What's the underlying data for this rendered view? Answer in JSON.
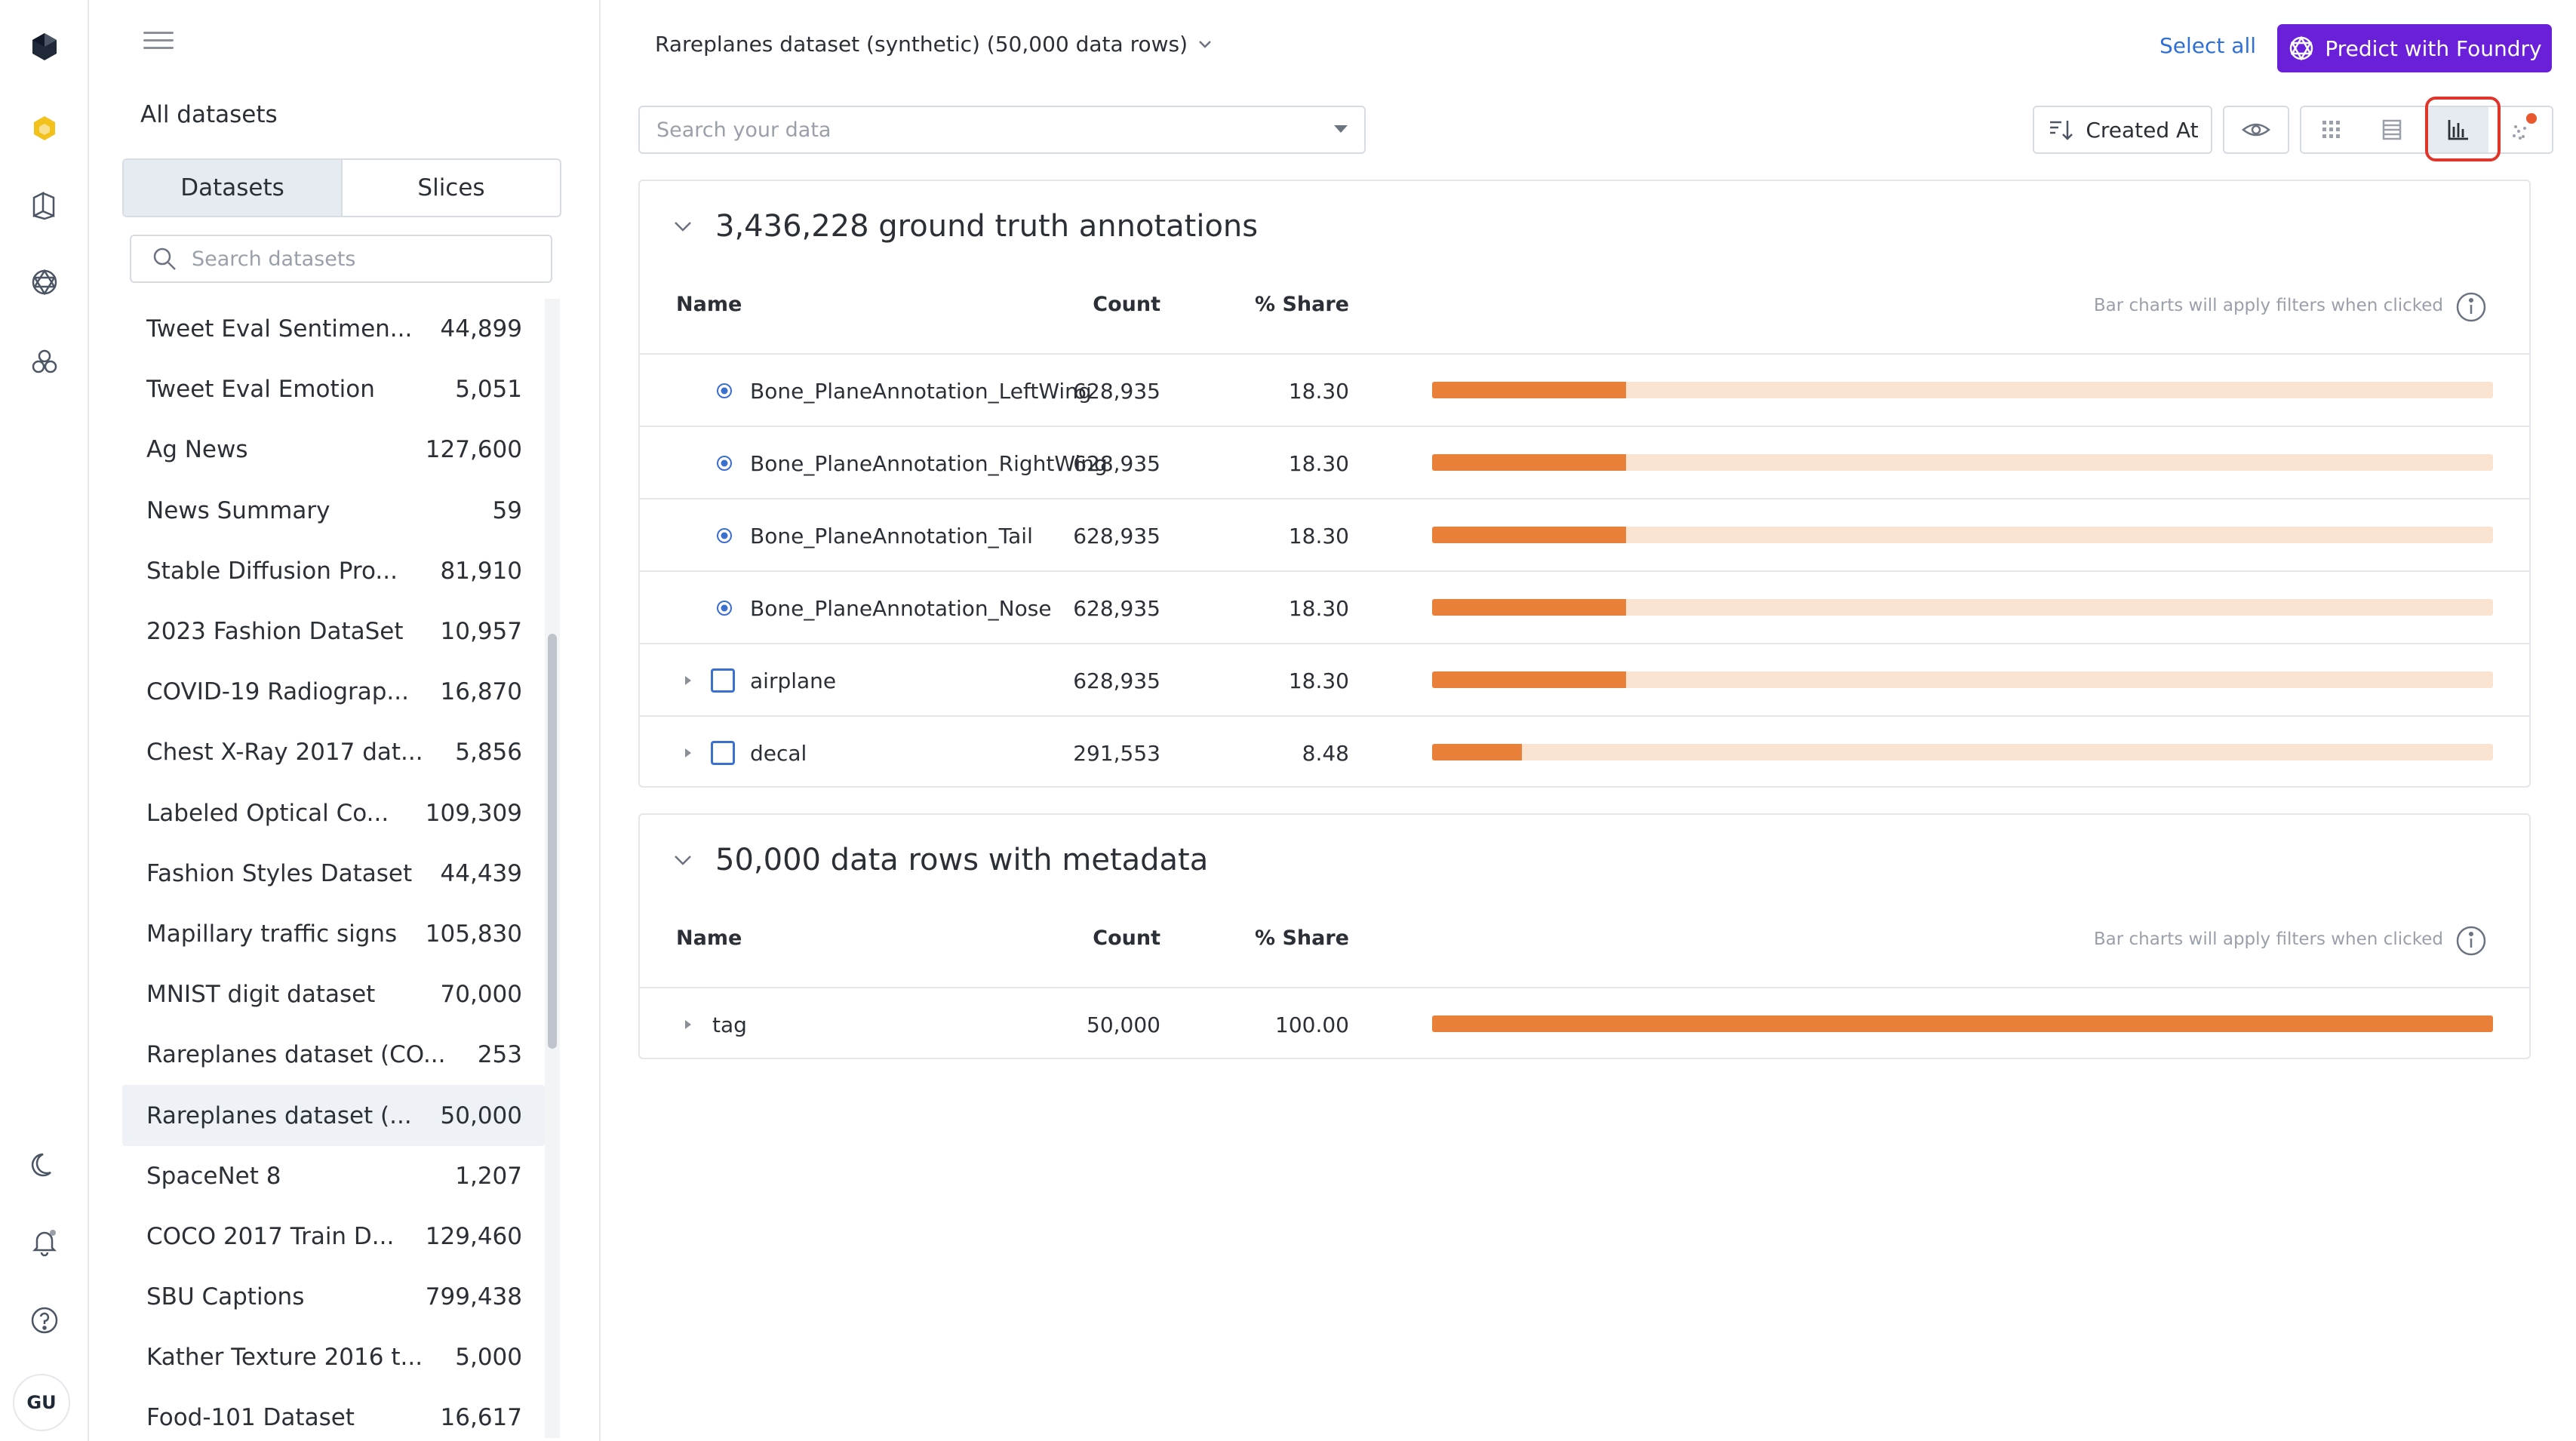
{
  "rail": {
    "avatar_initials": "GU"
  },
  "sidebar": {
    "heading": "All datasets",
    "tabs": [
      "Datasets",
      "Slices"
    ],
    "search_placeholder": "Search datasets",
    "datasets": [
      {
        "name": "Tweet Eval Sentimen...",
        "count": "44,899"
      },
      {
        "name": "Tweet Eval Emotion",
        "count": "5,051"
      },
      {
        "name": "Ag News",
        "count": "127,600"
      },
      {
        "name": "News Summary",
        "count": "59"
      },
      {
        "name": "Stable Diffusion Pro...",
        "count": "81,910"
      },
      {
        "name": "2023 Fashion DataSet",
        "count": "10,957"
      },
      {
        "name": "COVID-19 Radiograp...",
        "count": "16,870"
      },
      {
        "name": "Chest X-Ray 2017 dat...",
        "count": "5,856"
      },
      {
        "name": "Labeled Optical Co...",
        "count": "109,309"
      },
      {
        "name": "Fashion Styles Dataset",
        "count": "44,439"
      },
      {
        "name": "Mapillary traffic signs",
        "count": "105,830"
      },
      {
        "name": "MNIST digit dataset",
        "count": "70,000"
      },
      {
        "name": "Rareplanes dataset (CO...",
        "count": "253"
      },
      {
        "name": "Rareplanes dataset (...",
        "count": "50,000"
      },
      {
        "name": "SpaceNet 8",
        "count": "1,207"
      },
      {
        "name": "COCO 2017 Train D...",
        "count": "129,460"
      },
      {
        "name": "SBU Captions",
        "count": "799,438"
      },
      {
        "name": "Kather Texture 2016 t...",
        "count": "5,000"
      },
      {
        "name": "Food-101 Dataset",
        "count": "16,617"
      }
    ],
    "selected_index": 13
  },
  "header": {
    "dataset_title": "Rareplanes dataset (synthetic) (50,000 data rows)",
    "select_all": "Select all",
    "predict_button": "Predict with Foundry",
    "search_placeholder": "Search your data",
    "sort_button": "Created At",
    "active_view": "chart-view",
    "accent_color": "#6a1fd8"
  },
  "annotations_panel": {
    "title": "3,436,228 ground truth annotations",
    "columns": {
      "name": "Name",
      "count": "Count",
      "share": "% Share"
    },
    "hint": "Bar charts will apply filters when clicked",
    "rows": [
      {
        "name": "Bone_PlaneAnnotation_LeftWing",
        "count": "628,935",
        "share": "18.30",
        "share_value": 18.3,
        "kind": "radio"
      },
      {
        "name": "Bone_PlaneAnnotation_RightWing",
        "count": "628,935",
        "share": "18.30",
        "share_value": 18.3,
        "kind": "radio"
      },
      {
        "name": "Bone_PlaneAnnotation_Tail",
        "count": "628,935",
        "share": "18.30",
        "share_value": 18.3,
        "kind": "radio"
      },
      {
        "name": "Bone_PlaneAnnotation_Nose",
        "count": "628,935",
        "share": "18.30",
        "share_value": 18.3,
        "kind": "radio"
      },
      {
        "name": "airplane",
        "count": "628,935",
        "share": "18.30",
        "share_value": 18.3,
        "kind": "box"
      },
      {
        "name": "decal",
        "count": "291,553",
        "share": "8.48",
        "share_value": 8.48,
        "kind": "box"
      }
    ]
  },
  "metadata_panel": {
    "title": "50,000 data rows with metadata",
    "columns": {
      "name": "Name",
      "count": "Count",
      "share": "% Share"
    },
    "hint": "Bar charts will apply filters when clicked",
    "rows": [
      {
        "name": "tag",
        "count": "50,000",
        "share": "100.00",
        "share_value": 100.0,
        "kind": "none"
      }
    ]
  },
  "colors": {
    "bar_fill": "#e8803a",
    "bar_track": "#fbe3d2",
    "link": "#2f6fd6",
    "highlight": "#e0352b"
  }
}
